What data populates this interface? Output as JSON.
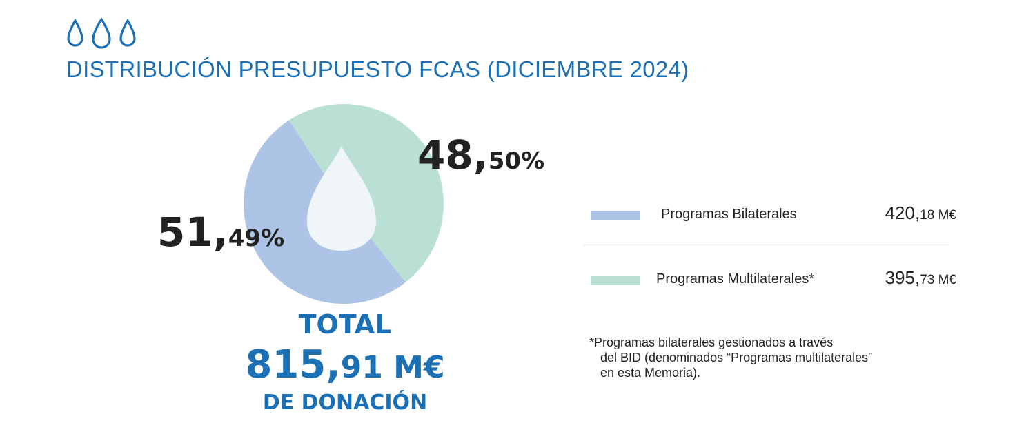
{
  "title": "DISTRIBUCIÓN PRESUPUESTO FCAS (DICIEMBRE 2024)",
  "colors": {
    "accent": "#1a6fb5",
    "bilateral": "#adc4e6",
    "multilateral": "#badfd4",
    "drop": "#f0f5fa",
    "text": "#222222"
  },
  "chart_data": {
    "type": "pie",
    "title": "DISTRIBUCIÓN PRESUPUESTO FCAS (DICIEMBRE 2024)",
    "slices": [
      {
        "name": "Programas Bilaterales",
        "value": 420.18,
        "percent": 51.49,
        "unit": "M€"
      },
      {
        "name": "Programas Multilaterales*",
        "value": 395.73,
        "percent": 48.5,
        "unit": "M€"
      }
    ],
    "total": 815.91
  },
  "labels": {
    "bilateral_pct_int": "51,",
    "bilateral_pct_dec": "49%",
    "multilateral_pct_int": "48,",
    "multilateral_pct_dec": "50%"
  },
  "total": {
    "label": "TOTAL",
    "amount_int": "815,",
    "amount_dec": "91 M€",
    "sub": "DE DONACIÓN"
  },
  "legend": [
    {
      "label": "Programas Bilaterales",
      "value_int": "420,",
      "value_dec": "18 M€"
    },
    {
      "label": "Programas Multilaterales*",
      "value_int": "395,",
      "value_dec": "73 M€"
    }
  ],
  "footnote": [
    "*Programas bilaterales gestionados a través",
    "del BID (denominados “Programas multilaterales”",
    "en esta Memoria)."
  ]
}
